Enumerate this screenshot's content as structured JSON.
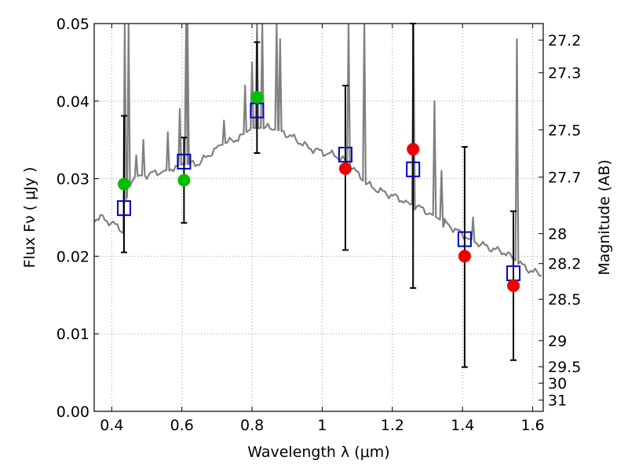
{
  "chart_data": {
    "type": "scatter",
    "title": "",
    "xlabel": "Wavelength  λ (μm)",
    "ylabel": "Flux  Fν  ( μJy )",
    "ylabel_right": "Magnitude (AB)",
    "xlim": [
      0.35,
      1.63
    ],
    "ylim": [
      0.0,
      0.05
    ],
    "grid": true,
    "x_ticks": [
      {
        "value": 0.4,
        "label": "0.4"
      },
      {
        "value": 0.6,
        "label": "0.6"
      },
      {
        "value": 0.8,
        "label": "0.8"
      },
      {
        "value": 1.0,
        "label": "1"
      },
      {
        "value": 1.2,
        "label": "1.2"
      },
      {
        "value": 1.4,
        "label": "1.4"
      },
      {
        "value": 1.6,
        "label": "1.6"
      }
    ],
    "y_ticks": [
      {
        "value": 0.0,
        "label": "0.00"
      },
      {
        "value": 0.01,
        "label": "0.01"
      },
      {
        "value": 0.02,
        "label": "0.02"
      },
      {
        "value": 0.03,
        "label": "0.03"
      },
      {
        "value": 0.04,
        "label": "0.04"
      },
      {
        "value": 0.05,
        "label": "0.05"
      }
    ],
    "mag_ticks": [
      {
        "value": 27.2,
        "label": "27.2"
      },
      {
        "value": 27.3,
        "label": "27.3"
      },
      {
        "value": 27.5,
        "label": "27.5"
      },
      {
        "value": 27.7,
        "label": "27.7"
      },
      {
        "value": 28,
        "label": "28"
      },
      {
        "value": 28.2,
        "label": "28.2"
      },
      {
        "value": 28.5,
        "label": "28.5"
      },
      {
        "value": 29,
        "label": "29"
      },
      {
        "value": 29.5,
        "label": "29.5"
      },
      {
        "value": 30,
        "label": "30"
      },
      {
        "value": 31,
        "label": "31"
      }
    ],
    "colors": {
      "model": "#808080",
      "optical": "#00c000",
      "nir": "#ee0000",
      "square": "#0000cc",
      "errorbar": "#000000",
      "grid": "#999999"
    },
    "observed": [
      {
        "x": 0.435,
        "y": 0.0293,
        "yerr_low": 0.0205,
        "yerr_high": 0.0381,
        "color": "optical"
      },
      {
        "x": 0.606,
        "y": 0.0298,
        "yerr_low": 0.0243,
        "yerr_high": 0.0353,
        "color": "optical"
      },
      {
        "x": 0.814,
        "y": 0.0405,
        "yerr_low": 0.0333,
        "yerr_high": 0.0476,
        "color": "optical"
      },
      {
        "x": 1.066,
        "y": 0.0313,
        "yerr_low": 0.0208,
        "yerr_high": 0.042,
        "color": "nir"
      },
      {
        "x": 1.259,
        "y": 0.0338,
        "yerr_low": 0.0159,
        "yerr_high": 0.05,
        "color": "nir"
      },
      {
        "x": 1.406,
        "y": 0.02,
        "yerr_low": 0.0057,
        "yerr_high": 0.0341,
        "color": "nir"
      },
      {
        "x": 1.545,
        "y": 0.0162,
        "yerr_low": 0.0066,
        "yerr_high": 0.0258,
        "color": "nir"
      }
    ],
    "model_photometry": [
      {
        "x": 0.435,
        "y": 0.0262
      },
      {
        "x": 0.606,
        "y": 0.0322
      },
      {
        "x": 0.814,
        "y": 0.0388
      },
      {
        "x": 1.066,
        "y": 0.0331
      },
      {
        "x": 1.259,
        "y": 0.0312
      },
      {
        "x": 1.406,
        "y": 0.0222
      },
      {
        "x": 1.545,
        "y": 0.0178
      }
    ],
    "model_spectrum": {
      "continuum": [
        {
          "x": 0.35,
          "y": 0.0248
        },
        {
          "x": 0.37,
          "y": 0.025
        },
        {
          "x": 0.39,
          "y": 0.0245
        },
        {
          "x": 0.41,
          "y": 0.024
        },
        {
          "x": 0.425,
          "y": 0.0236
        },
        {
          "x": 0.435,
          "y": 0.0228
        },
        {
          "x": 0.44,
          "y": 0.0272
        },
        {
          "x": 0.46,
          "y": 0.0302
        },
        {
          "x": 0.5,
          "y": 0.0305
        },
        {
          "x": 0.55,
          "y": 0.031
        },
        {
          "x": 0.6,
          "y": 0.0318
        },
        {
          "x": 0.65,
          "y": 0.032
        },
        {
          "x": 0.68,
          "y": 0.0332
        },
        {
          "x": 0.72,
          "y": 0.0345
        },
        {
          "x": 0.76,
          "y": 0.0352
        },
        {
          "x": 0.8,
          "y": 0.0365
        },
        {
          "x": 0.84,
          "y": 0.0366
        },
        {
          "x": 0.88,
          "y": 0.0362
        },
        {
          "x": 0.92,
          "y": 0.0352
        },
        {
          "x": 0.96,
          "y": 0.034
        },
        {
          "x": 1.0,
          "y": 0.0334
        },
        {
          "x": 1.04,
          "y": 0.033
        },
        {
          "x": 1.08,
          "y": 0.0318
        },
        {
          "x": 1.12,
          "y": 0.0295
        },
        {
          "x": 1.16,
          "y": 0.0285
        },
        {
          "x": 1.2,
          "y": 0.0278
        },
        {
          "x": 1.24,
          "y": 0.027
        },
        {
          "x": 1.28,
          "y": 0.0262
        },
        {
          "x": 1.32,
          "y": 0.0252
        },
        {
          "x": 1.36,
          "y": 0.024
        },
        {
          "x": 1.4,
          "y": 0.0228
        },
        {
          "x": 1.44,
          "y": 0.0218
        },
        {
          "x": 1.48,
          "y": 0.021
        },
        {
          "x": 1.52,
          "y": 0.0205
        },
        {
          "x": 1.55,
          "y": 0.0195
        },
        {
          "x": 1.58,
          "y": 0.0185
        },
        {
          "x": 1.6,
          "y": 0.018
        },
        {
          "x": 1.63,
          "y": 0.0176
        }
      ],
      "emission_lines": [
        {
          "x": 0.437,
          "peak": 0.05
        },
        {
          "x": 0.448,
          "peak": 0.05
        },
        {
          "x": 0.47,
          "peak": 0.033
        },
        {
          "x": 0.49,
          "peak": 0.035
        },
        {
          "x": 0.56,
          "peak": 0.036
        },
        {
          "x": 0.594,
          "peak": 0.039
        },
        {
          "x": 0.612,
          "peak": 0.05
        },
        {
          "x": 0.616,
          "peak": 0.05
        },
        {
          "x": 0.72,
          "peak": 0.0375
        },
        {
          "x": 0.78,
          "peak": 0.042
        },
        {
          "x": 0.8,
          "peak": 0.045
        },
        {
          "x": 0.814,
          "peak": 0.05
        },
        {
          "x": 0.829,
          "peak": 0.05
        },
        {
          "x": 0.87,
          "peak": 0.05
        },
        {
          "x": 0.88,
          "peak": 0.048
        },
        {
          "x": 1.075,
          "peak": 0.05
        },
        {
          "x": 1.12,
          "peak": 0.05
        },
        {
          "x": 1.26,
          "peak": 0.05
        },
        {
          "x": 1.32,
          "peak": 0.04
        },
        {
          "x": 1.34,
          "peak": 0.031
        },
        {
          "x": 1.43,
          "peak": 0.025
        },
        {
          "x": 1.555,
          "peak": 0.048
        }
      ],
      "absorption_dips": [
        {
          "x": 1.25,
          "depth": 0.0267
        },
        {
          "x": 1.345,
          "depth": 0.0238
        }
      ]
    }
  }
}
